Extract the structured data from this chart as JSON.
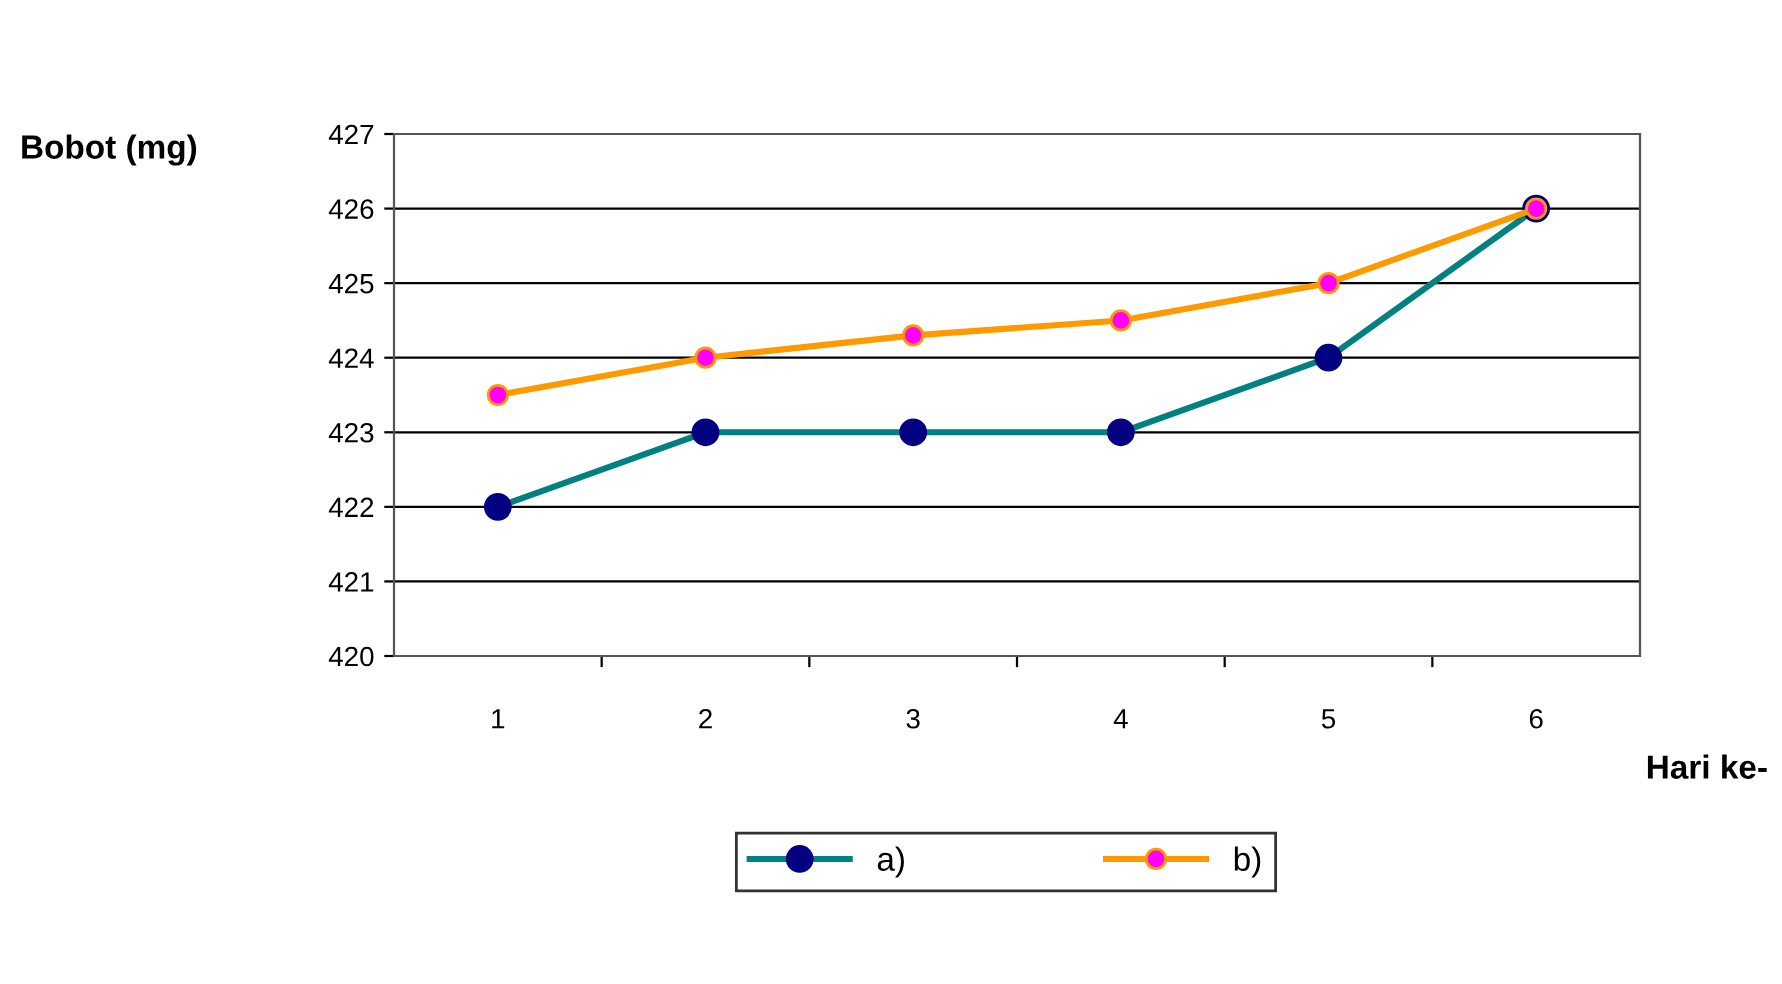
{
  "chart_data": {
    "type": "line",
    "ylabel": "Bobot (mg)",
    "xlabel": "Hari ke-",
    "categories": [
      "1",
      "2",
      "3",
      "4",
      "5",
      "6"
    ],
    "series": [
      {
        "name": "a)",
        "color": "#008080",
        "values": [
          422,
          423,
          423,
          423,
          424,
          426
        ]
      },
      {
        "name": "b)",
        "color": "#ff9900",
        "values": [
          423.5,
          424,
          424.3,
          424.5,
          425,
          426
        ]
      }
    ],
    "ylim": [
      420,
      427
    ],
    "yticks": [
      420,
      421,
      422,
      423,
      424,
      425,
      426,
      427
    ],
    "grid": "y",
    "legend": "bottom",
    "marker": "circle",
    "line_style": "solid"
  }
}
